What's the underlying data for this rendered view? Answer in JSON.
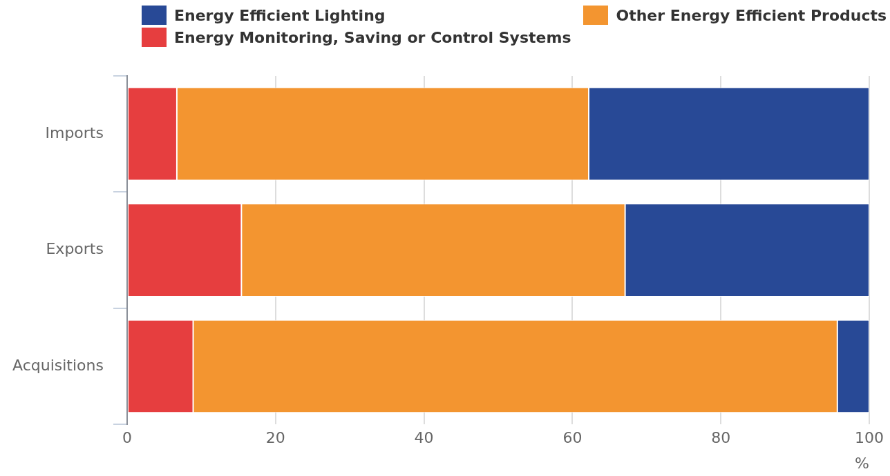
{
  "chart_data": {
    "type": "bar",
    "orientation": "horizontal",
    "stacked": true,
    "xlabel": "%",
    "categories": [
      "Imports",
      "Exports",
      "Acquisitions"
    ],
    "series": [
      {
        "name": "Energy Monitoring, Saving or Control Systems",
        "color": "#e63e3f",
        "values": [
          6.7,
          15.4,
          8.9
        ]
      },
      {
        "name": "Other Energy Efficient Products",
        "color": "#f39530",
        "values": [
          55.5,
          51.7,
          86.8
        ]
      },
      {
        "name": "Energy Efficient Lighting",
        "color": "#284996",
        "values": [
          37.8,
          32.9,
          4.3
        ]
      }
    ],
    "xlim": [
      0,
      100
    ],
    "xticks": [
      0,
      20,
      40,
      60,
      80,
      100
    ],
    "grid": "x",
    "legend": "top"
  }
}
